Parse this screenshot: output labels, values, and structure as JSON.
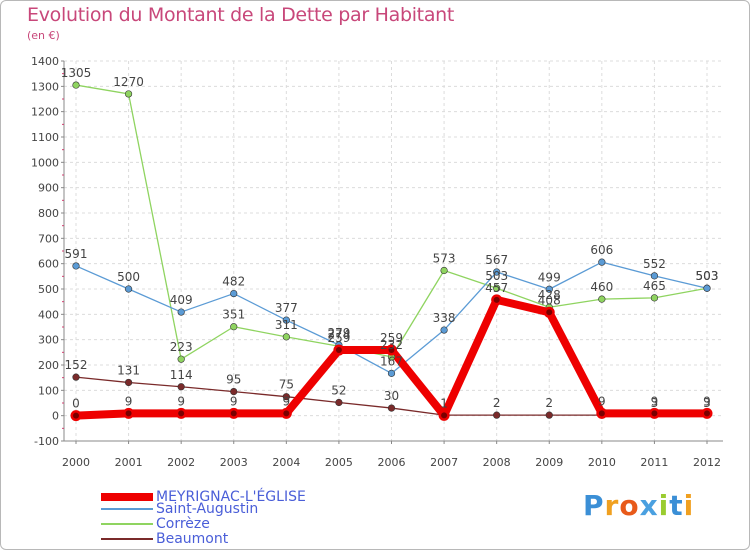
{
  "header": {
    "title": "Evolution du Montant de la Dette par Habitant",
    "unit": "(en €)"
  },
  "logo": {
    "text": "Proxiti",
    "colors": [
      "#3b8fd6",
      "#f0a020",
      "#e85a1a",
      "#4aa0e0",
      "#9acc30",
      "#3b8fd6",
      "#f0a020"
    ]
  },
  "chart_data": {
    "type": "line",
    "title": "Evolution du Montant de la Dette par Habitant",
    "ylabel": "(en €)",
    "x": [
      "2000",
      "2001",
      "2002",
      "2003",
      "2004",
      "2005",
      "2006",
      "2007",
      "2008",
      "2009",
      "2010",
      "2011",
      "2012"
    ],
    "ylim": [
      -100,
      1400
    ],
    "yticks": [
      "-100",
      "0",
      "100",
      "200",
      "300",
      "400",
      "500",
      "600",
      "700",
      "800",
      "900",
      "1000",
      "1100",
      "1200",
      "1300",
      "1400"
    ],
    "grid": true,
    "legend_position": "bottom-left",
    "series": [
      {
        "name": "MEYRIGNAC-L'ÉGLISE",
        "color": "#ee0000",
        "values": [
          0,
          9,
          9,
          9,
          9,
          259,
          259,
          1,
          457,
          408,
          9,
          9,
          9
        ],
        "labels": [
          "0",
          "9",
          "9",
          "9",
          "9",
          "259",
          "259",
          "1",
          "457",
          "408",
          "9",
          "9",
          "9"
        ]
      },
      {
        "name": "Saint-Augustin",
        "color": "#5b9bd5",
        "values": [
          591,
          500,
          409,
          482,
          377,
          279,
          167,
          338,
          567,
          499,
          606,
          552,
          503
        ],
        "labels": [
          "591",
          "500",
          "409",
          "482",
          "377",
          "279",
          "167",
          "338",
          "567",
          "499",
          "606",
          "552",
          "503"
        ]
      },
      {
        "name": "Corrèze",
        "color": "#8fd460",
        "values": [
          1305,
          1270,
          223,
          351,
          311,
          274,
          232,
          573,
          503,
          428,
          460,
          465,
          503
        ],
        "labels": [
          "1305",
          "1270",
          "223",
          "351",
          "311",
          "274",
          "232",
          "573",
          "503",
          "428",
          "460",
          "465",
          "503"
        ]
      },
      {
        "name": "Beaumont",
        "color": "#7a2a2a",
        "values": [
          152,
          131,
          114,
          95,
          75,
          52,
          30,
          2,
          2,
          2,
          2,
          3,
          3
        ],
        "labels": [
          "152",
          "131",
          "114",
          "95",
          "75",
          "52",
          "30",
          "",
          "2",
          "2",
          "",
          "3",
          "3"
        ]
      }
    ]
  }
}
